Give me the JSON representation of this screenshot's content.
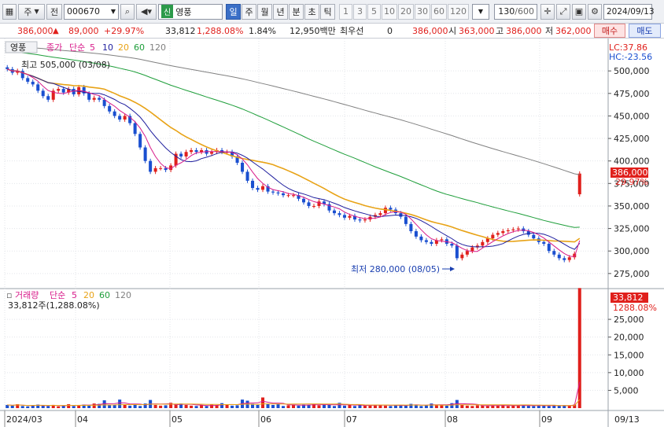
{
  "toolbar": {
    "market_label": "주",
    "type_label": "전",
    "code": "000670",
    "badge": "신",
    "name": "영풍",
    "periods": [
      {
        "label": "일",
        "active": true
      },
      {
        "label": "주",
        "active": false
      },
      {
        "label": "월",
        "active": false
      },
      {
        "label": "년",
        "active": false
      },
      {
        "label": "분",
        "active": false
      },
      {
        "label": "초",
        "active": false
      },
      {
        "label": "틱",
        "active": false
      }
    ],
    "intervals": [
      "1",
      "3",
      "5",
      "10",
      "20",
      "30",
      "60",
      "120"
    ],
    "count": "130",
    "count_total": "/600",
    "date": "2024/09/13"
  },
  "info": {
    "price": "386,000",
    "change": "89,000",
    "change_pct": "+29.97%",
    "volume": "33,812",
    "volume_pct": "1,288.08%",
    "turnover_pct": "1.84%",
    "amount": "12,950백만",
    "priority_label": "최우선",
    "priority_value": "0",
    "ask": "386,000",
    "open_label": "시",
    "open": "363,000",
    "high_label": "고",
    "high": "386,000",
    "low_label": "저",
    "low": "362,000",
    "buy_label": "매수",
    "sell_label": "매도"
  },
  "price_panel": {
    "legend_name": "영풍",
    "legend_close": "종가",
    "legend_ma": "단순",
    "ma_periods": [
      "5",
      "10",
      "20",
      "60",
      "120"
    ],
    "high_note": "최고 505,000 (03/08)",
    "low_note": "최저 280,000 (08/05)",
    "lc": "LC:37.86",
    "hc": "HC:-23.56",
    "current_price": "386,000",
    "current_pct": "29.97%",
    "y_ticks": [
      "500,000",
      "475,000",
      "450,000",
      "425,000",
      "400,000",
      "375,000",
      "350,000",
      "325,000",
      "300,000",
      "275,000"
    ]
  },
  "volume_panel": {
    "legend_name": "거래량",
    "legend_ma": "단순",
    "ma_periods": [
      "5",
      "20",
      "60",
      "120"
    ],
    "value_text": "33,812주(1,288.08%)",
    "current_volume": "33,812",
    "current_pct": "1288.08%",
    "y_ticks": [
      "25,000",
      "20,000",
      "15,000",
      "10,000",
      "5,000"
    ]
  },
  "x_axis": {
    "labels": [
      "2024/03",
      "04",
      "05",
      "06",
      "07",
      "08",
      "09"
    ],
    "right_label": "09/13"
  },
  "colors": {
    "up": "#e0201c",
    "down": "#1a4fd0",
    "ma5": "#d81b8a",
    "ma10": "#1f1f9e",
    "ma20": "#e8a317",
    "ma60": "#1e9e3a",
    "ma120": "#808080"
  },
  "chart_data": {
    "type": "candlestick",
    "price_range": [
      260000,
      515000
    ],
    "volume_range": [
      0,
      31000
    ],
    "month_labels": [
      "2024/03",
      "04",
      "05",
      "06",
      "07",
      "08",
      "09"
    ],
    "close": [
      502000,
      498000,
      500000,
      492000,
      488000,
      485000,
      478000,
      472000,
      468000,
      478000,
      480000,
      476000,
      480000,
      474000,
      482000,
      475000,
      468000,
      470000,
      468000,
      461000,
      455000,
      450000,
      446000,
      450000,
      442000,
      430000,
      415000,
      400000,
      388000,
      392000,
      392000,
      390000,
      395000,
      408000,
      405000,
      410000,
      412000,
      410000,
      412000,
      408000,
      410000,
      412000,
      410000,
      410000,
      405000,
      398000,
      388000,
      378000,
      370000,
      368000,
      372000,
      366000,
      365000,
      364000,
      362000,
      362000,
      362000,
      358000,
      354000,
      350000,
      350000,
      355000,
      352000,
      345000,
      342000,
      340000,
      337000,
      339000,
      335000,
      334000,
      335000,
      338000,
      340000,
      342000,
      348000,
      346000,
      342000,
      338000,
      330000,
      322000,
      316000,
      312000,
      310000,
      308000,
      312000,
      313000,
      308000,
      306000,
      292000,
      296000,
      300000,
      304000,
      306000,
      310000,
      314000,
      318000,
      320000,
      322000,
      323000,
      324000,
      325000,
      322000,
      318000,
      314000,
      310000,
      308000,
      300000,
      296000,
      292000,
      290000,
      293000,
      297000,
      386000
    ],
    "volume": [
      900,
      700,
      1100,
      600,
      500,
      800,
      1000,
      700,
      600,
      900,
      500,
      700,
      1100,
      600,
      900,
      1000,
      700,
      1300,
      1200,
      2200,
      800,
      900,
      2400,
      1000,
      700,
      900,
      600,
      1300,
      2300,
      900,
      700,
      800,
      1500,
      1000,
      1300,
      900,
      700,
      600,
      800,
      600,
      1000,
      900,
      1400,
      1100,
      700,
      800,
      2400,
      2100,
      1200,
      900,
      3000,
      1100,
      900,
      1200,
      600,
      800,
      1000,
      700,
      1000,
      900,
      1200,
      800,
      1100,
      900,
      600,
      1500,
      700,
      900,
      600,
      800,
      700,
      900,
      1000,
      800,
      700,
      600,
      900,
      900,
      700,
      1200,
      900,
      600,
      800,
      1300,
      1000,
      900,
      700,
      1400,
      2300,
      900,
      700,
      600,
      800,
      700,
      600,
      800,
      700,
      900,
      600,
      700,
      800,
      900,
      700,
      600,
      800,
      700,
      600,
      900,
      700,
      800,
      700,
      1000,
      33812
    ]
  }
}
